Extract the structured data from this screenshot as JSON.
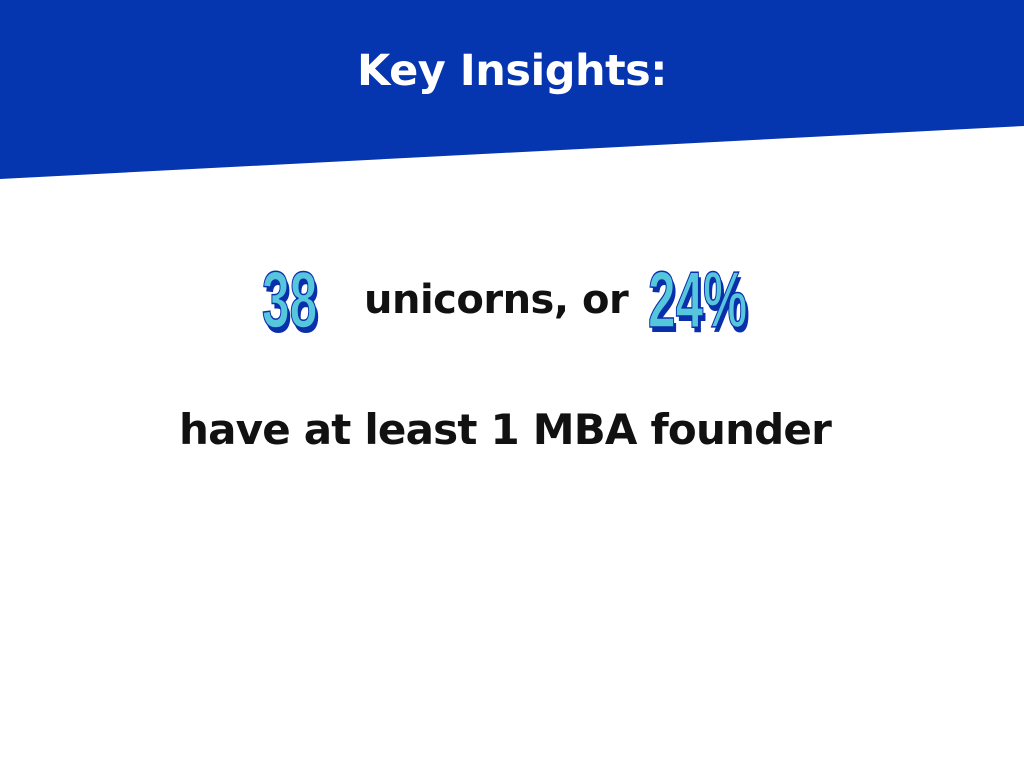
{
  "slide": {
    "title": "Key Insights:",
    "stat_count": "38",
    "connector": "unicorns, or",
    "stat_percent": "24%",
    "statement": "have at least 1 MBA founder"
  },
  "colors": {
    "header_blue": "#0635b0",
    "number_fill": "#55c6dc",
    "number_shadow": "#0a2faa",
    "text_dark": "#111111",
    "background": "#ffffff"
  }
}
